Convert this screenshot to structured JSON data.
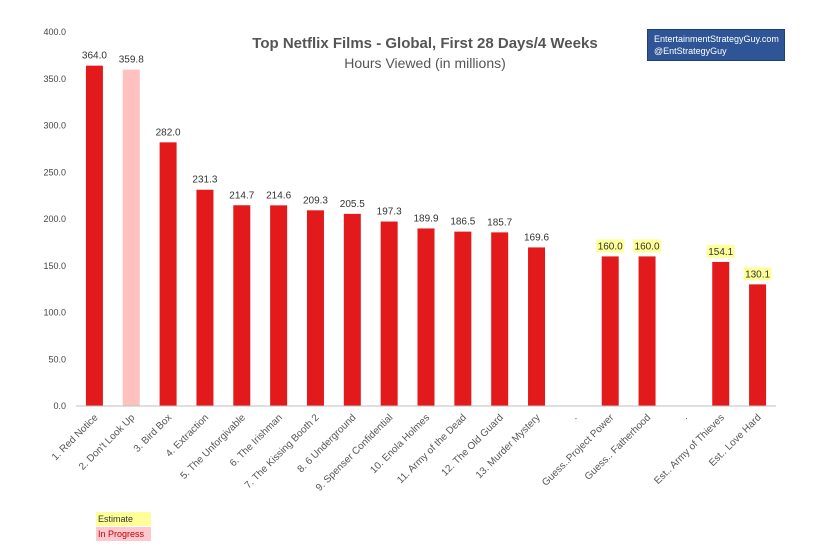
{
  "chart_data": {
    "type": "bar",
    "title": "Top Netflix Films - Global, First 28 Days/4 Weeks",
    "subtitle": "Hours Viewed (in millions)",
    "ylim": [
      0,
      400
    ],
    "yticks": [
      "0.0",
      "50.0",
      "100.0",
      "150.0",
      "200.0",
      "250.0",
      "300.0",
      "350.0",
      "400.0"
    ],
    "categories": [
      "1. Red Notice",
      "2. Don't Look Up",
      "3. Bird Box",
      "4. Extraction",
      "5. The Unforgivable",
      "6. The Irishman",
      "7. The Kissing Booth 2",
      "8. 6 Underground",
      "9. Spenser Confidential",
      "10. Enola Holmes",
      "11. Army of the Dead",
      "12. The Old Guard",
      "13. Murder Mystery",
      ".",
      "Guess..Project Power",
      "Guess.. Fatherhood",
      ".",
      "Est.. Army of Thieves",
      "Est.. Love Hard"
    ],
    "values": [
      364.0,
      359.8,
      282.0,
      231.3,
      214.7,
      214.6,
      209.3,
      205.5,
      197.3,
      189.9,
      186.5,
      185.7,
      169.6,
      null,
      160.0,
      160.0,
      null,
      154.1,
      130.1
    ],
    "labels": [
      "364.0",
      "359.8",
      "282.0",
      "231.3",
      "214.7",
      "214.6",
      "209.3",
      "205.5",
      "197.3",
      "189.9",
      "186.5",
      "185.7",
      "169.6",
      "",
      "160.0",
      "160.0",
      "",
      "154.1",
      "130.1"
    ],
    "status": [
      "final",
      "in-progress",
      "final",
      "final",
      "final",
      "final",
      "final",
      "final",
      "final",
      "final",
      "final",
      "final",
      "final",
      "none",
      "estimate",
      "estimate",
      "none",
      "estimate",
      "estimate"
    ],
    "colors": {
      "bar": "#e31a1c",
      "in_progress": "#ffc0c0",
      "estimate_label_bg": "#ffff99",
      "axis": "#bfbfbf"
    },
    "legend": [
      {
        "label": "Estimate",
        "color": "#ffff99"
      },
      {
        "label": "In Progress",
        "color": "#ffc7ce"
      }
    ]
  },
  "branding": {
    "line1": "EntertainmentStrategyGuy.com",
    "line2": "@EntStrategyGuy"
  }
}
